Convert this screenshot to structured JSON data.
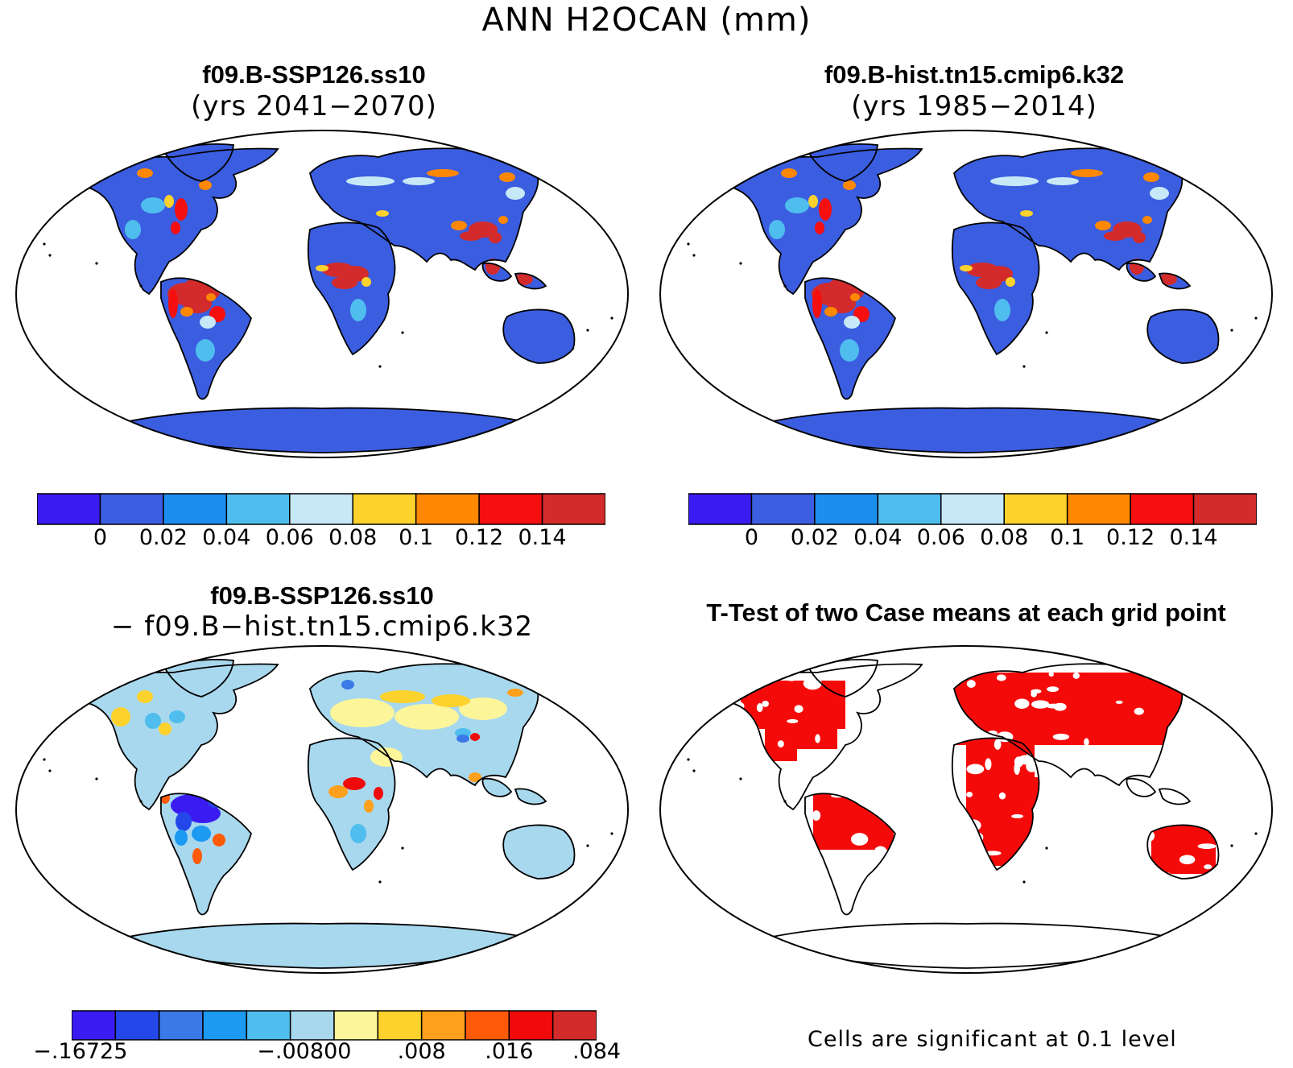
{
  "figure": {
    "title": "ANN H2OCAN (mm)"
  },
  "panels": [
    {
      "id": "ssp",
      "title": "f09.B-SSP126.ss10",
      "subtitle": "(yrs 2041−2070)",
      "colorbar": {
        "colors": [
          "#3a1cf2",
          "#3b5de0",
          "#1c8ef0",
          "#4fbdee",
          "#c7e8f7",
          "#fed22c",
          "#ff8800",
          "#f50f0f",
          "#d32b2b"
        ],
        "tick_labels": [
          "0",
          "0.02",
          "0.04",
          "0.06",
          "0.08",
          "0.1",
          "0.12",
          "0.14"
        ]
      }
    },
    {
      "id": "hist",
      "title": "f09.B-hist.tn15.cmip6.k32",
      "subtitle": "(yrs 1985−2014)",
      "colorbar": {
        "colors": [
          "#3a1cf2",
          "#3b5de0",
          "#1c8ef0",
          "#4fbdee",
          "#c7e8f7",
          "#fed22c",
          "#ff8800",
          "#f50f0f",
          "#d32b2b"
        ],
        "tick_labels": [
          "0",
          "0.02",
          "0.04",
          "0.06",
          "0.08",
          "0.1",
          "0.12",
          "0.14"
        ]
      }
    },
    {
      "id": "diff",
      "title": "f09.B-SSP126.ss10",
      "subtitle": "− f09.B−hist.tn15.cmip6.k32",
      "colorbar": {
        "colors": [
          "#3a1cf2",
          "#2447ea",
          "#3b79e6",
          "#1c99f0",
          "#4fbdee",
          "#a8d8ee",
          "#fdf59a",
          "#fed22c",
          "#ffa01c",
          "#ff5a08",
          "#f00a0a",
          "#d32b2b"
        ],
        "tick_labels": [
          "−.16725",
          "−.008",
          ".00",
          ".008",
          ".016",
          ".084"
        ]
      }
    },
    {
      "id": "ttest",
      "title": "T-Test of two Case means at each grid point",
      "note": "Cells are significant at 0.1 level",
      "color": "#f50a0a"
    }
  ]
}
